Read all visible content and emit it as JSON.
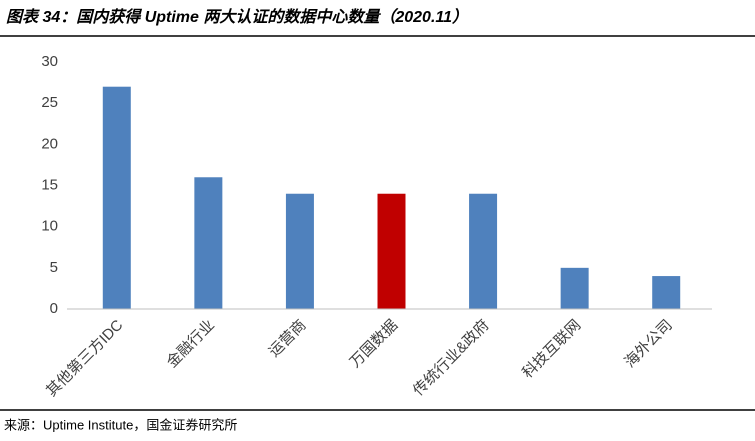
{
  "chart_data": {
    "type": "bar",
    "title": "图表 34：国内获得 Uptime 两大认证的数据中心数量（2020.11）",
    "source": "来源：Uptime Institute，国金证券研究所",
    "categories": [
      "其他第三方IDC",
      "金融行业",
      "运营商",
      "万国数据",
      "传统行业&政府",
      "科技互联网",
      "海外公司"
    ],
    "values": [
      27,
      16,
      14,
      14,
      14,
      5,
      4
    ],
    "colors": [
      "#4f81bd",
      "#4f81bd",
      "#4f81bd",
      "#c00000",
      "#4f81bd",
      "#4f81bd",
      "#4f81bd"
    ],
    "ylim": [
      0,
      30
    ],
    "yticks": [
      0,
      5,
      10,
      15,
      20,
      25,
      30
    ],
    "grid": false
  }
}
